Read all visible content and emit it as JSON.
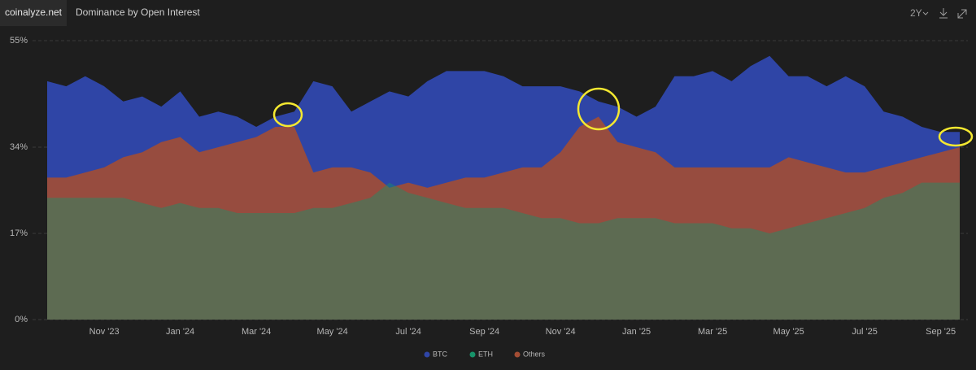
{
  "header": {
    "site": "coinalyze.net",
    "range": "2Y"
  },
  "chart_data": {
    "type": "area",
    "title": "Dominance by Open Interest",
    "categories": [
      null,
      null,
      null,
      "Nov '23",
      null,
      null,
      null,
      "Jan '24",
      null,
      null,
      null,
      "Mar '24",
      null,
      null,
      null,
      "May '24",
      null,
      null,
      null,
      "Jul '24",
      null,
      null,
      null,
      "Sep '24",
      null,
      null,
      null,
      "Nov '24",
      null,
      null,
      null,
      "Jan '25",
      null,
      null,
      null,
      "Mar '25",
      null,
      null,
      null,
      "May '25",
      null,
      null,
      null,
      "Jul '25",
      null,
      null,
      null,
      "Sep '25",
      null
    ],
    "series": [
      {
        "name": "BTC",
        "color": "#2f45a6",
        "values": [
          47,
          46,
          48,
          46,
          43,
          44,
          42,
          45,
          40,
          41,
          40,
          38,
          40,
          41,
          47,
          46,
          41,
          43,
          45,
          44,
          47,
          49,
          49,
          49,
          48,
          46,
          46,
          46,
          45,
          43,
          42,
          40,
          42,
          48,
          48,
          49,
          47,
          50,
          52,
          48,
          48,
          46,
          48,
          46,
          41,
          40,
          38,
          37,
          37
        ]
      },
      {
        "name": "ETH",
        "color": "#17936a",
        "values": [
          24,
          24,
          24,
          24,
          24,
          23,
          22,
          23,
          22,
          22,
          21,
          21,
          21,
          21,
          22,
          22,
          23,
          24,
          27,
          25,
          24,
          23,
          22,
          22,
          22,
          21,
          20,
          20,
          19,
          19,
          20,
          20,
          20,
          19,
          19,
          19,
          18,
          18,
          17,
          18,
          19,
          20,
          21,
          22,
          24,
          25,
          27,
          27,
          27
        ]
      },
      {
        "name": "Others",
        "color": "#a34d34",
        "values": [
          28,
          28,
          29,
          30,
          32,
          33,
          35,
          36,
          33,
          34,
          35,
          36,
          38,
          38,
          29,
          30,
          30,
          29,
          26,
          27,
          26,
          27,
          28,
          28,
          29,
          30,
          30,
          33,
          38,
          40,
          35,
          34,
          33,
          30,
          30,
          30,
          30,
          30,
          30,
          32,
          31,
          30,
          29,
          29,
          30,
          31,
          32,
          33,
          34
        ]
      }
    ],
    "ylim": [
      0,
      55
    ],
    "yticks": [
      {
        "value": 0,
        "label": "0%"
      },
      {
        "value": 17,
        "label": "17%"
      },
      {
        "value": 34,
        "label": "34%"
      },
      {
        "value": 55,
        "label": "55%"
      }
    ],
    "grid": true
  }
}
